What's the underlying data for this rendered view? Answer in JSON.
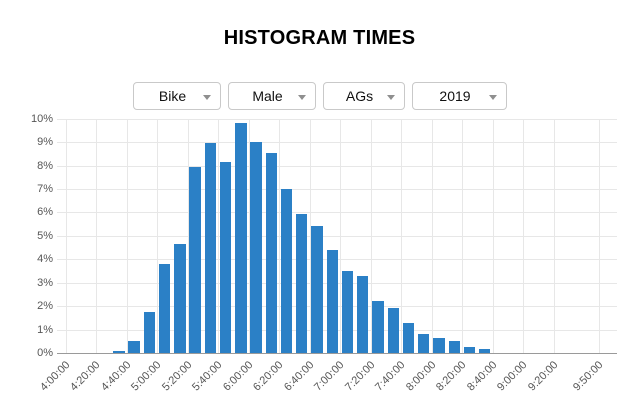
{
  "header": {
    "title": "HISTOGRAM TIMES"
  },
  "filters": [
    {
      "id": "discipline",
      "value": "Bike"
    },
    {
      "id": "gender",
      "value": "Male"
    },
    {
      "id": "age-group",
      "value": "AGs"
    },
    {
      "id": "year",
      "value": "2019"
    }
  ],
  "colors": {
    "bar": "#2b80c6",
    "grid": "#e7e7e7",
    "axis_line": "#9a9a9a",
    "axis_text": "#565656",
    "title_text": "#000000",
    "dropdown_border": "#c9c9c9",
    "dropdown_arrow": "#8f8f8f",
    "background": "#ffffff"
  },
  "chart_data": {
    "type": "bar",
    "title": "HISTOGRAM TIMES",
    "xlabel": "",
    "ylabel": "",
    "ylim": [
      0,
      10
    ],
    "y_tick_labels": [
      "0%",
      "1%",
      "2%",
      "3%",
      "4%",
      "5%",
      "6%",
      "7%",
      "8%",
      "9%",
      "10%"
    ],
    "x_tick_labels": [
      "4:00:00",
      "4:20:00",
      "4:40:00",
      "5:00:00",
      "5:20:00",
      "5:40:00",
      "6:00:00",
      "6:20:00",
      "6:40:00",
      "7:00:00",
      "7:20:00",
      "7:40:00",
      "8:00:00",
      "8:20:00",
      "8:40:00",
      "9:00:00",
      "9:20:00",
      "9:50:00"
    ],
    "bucket_width_minutes": 10,
    "grid": true,
    "legend_position": "none",
    "buckets": [
      {
        "start": "4:30:00",
        "value": 0.1
      },
      {
        "start": "4:40:00",
        "value": 0.5
      },
      {
        "start": "4:50:00",
        "value": 1.75
      },
      {
        "start": "5:00:00",
        "value": 3.8
      },
      {
        "start": "5:10:00",
        "value": 4.65
      },
      {
        "start": "5:20:00",
        "value": 7.95
      },
      {
        "start": "5:30:00",
        "value": 8.95
      },
      {
        "start": "5:40:00",
        "value": 8.15
      },
      {
        "start": "5:50:00",
        "value": 9.8
      },
      {
        "start": "6:00:00",
        "value": 9.0
      },
      {
        "start": "6:10:00",
        "value": 8.55
      },
      {
        "start": "6:20:00",
        "value": 7.0
      },
      {
        "start": "6:30:00",
        "value": 5.95
      },
      {
        "start": "6:40:00",
        "value": 5.4
      },
      {
        "start": "6:50:00",
        "value": 4.4
      },
      {
        "start": "7:00:00",
        "value": 3.5
      },
      {
        "start": "7:10:00",
        "value": 3.3
      },
      {
        "start": "7:20:00",
        "value": 2.2
      },
      {
        "start": "7:30:00",
        "value": 1.9
      },
      {
        "start": "7:40:00",
        "value": 1.3
      },
      {
        "start": "7:50:00",
        "value": 0.8
      },
      {
        "start": "8:00:00",
        "value": 0.65
      },
      {
        "start": "8:10:00",
        "value": 0.5
      },
      {
        "start": "8:20:00",
        "value": 0.25
      },
      {
        "start": "8:30:00",
        "value": 0.15
      }
    ]
  }
}
